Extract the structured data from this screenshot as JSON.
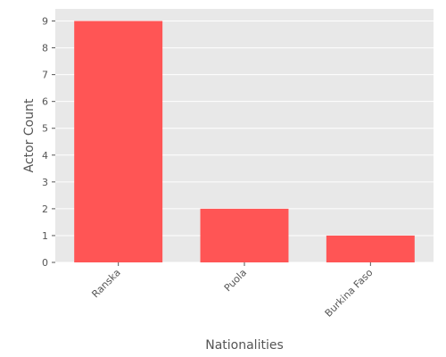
{
  "chart_data": {
    "type": "bar",
    "title": "",
    "xlabel": "Nationalities",
    "ylabel": "Actor Count",
    "categories": [
      "Ranska",
      "Puola",
      "Burkina Faso"
    ],
    "values": [
      9,
      2,
      1
    ],
    "ylim": [
      0,
      9.45
    ],
    "yticks": [
      0,
      1,
      2,
      3,
      4,
      5,
      6,
      7,
      8,
      9
    ],
    "grid": true,
    "colors": {
      "bar": "#ff5555",
      "background": "#e8e8e8",
      "grid": "#ffffff",
      "text": "#555555"
    }
  }
}
